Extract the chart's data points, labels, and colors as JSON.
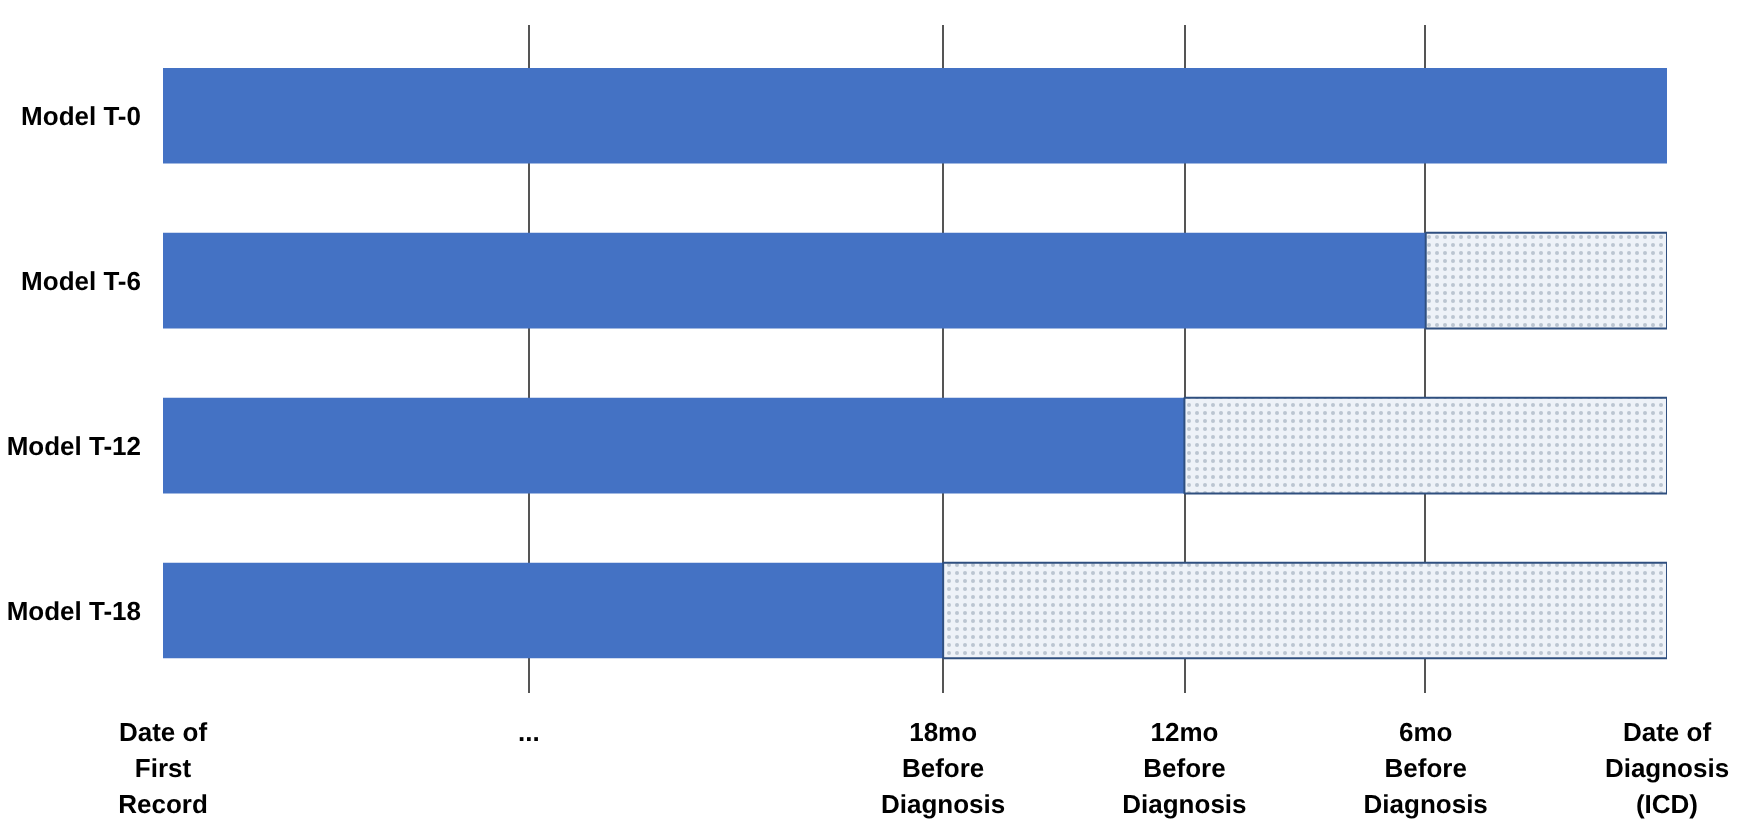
{
  "chart_data": {
    "type": "bar",
    "orientation": "horizontal",
    "categories": [
      "Model T-0",
      "Model T-6",
      "Model T-12",
      "Model T-18"
    ],
    "series": [
      {
        "color": "#4472c4",
        "base": [
          37.4,
          37.4,
          37.4,
          37.4
        ],
        "values": [
          -37.4,
          -31.4,
          -25.4,
          -19.4
        ]
      },
      {
        "color": "#eef2f8",
        "base": [
          null,
          6,
          12,
          18
        ],
        "values": [
          null,
          -6,
          -12,
          -18
        ]
      }
    ],
    "xlim": [
      37.4,
      0
    ],
    "xticks": [
      {
        "value": 37.4,
        "label": "Date of\nFirst\nRecord"
      },
      {
        "value": 28.3,
        "label": "..."
      },
      {
        "value": 18,
        "label": "18mo\nBefore\nDiagnosis"
      },
      {
        "value": 12,
        "label": "12mo\nBefore\nDiagnosis"
      },
      {
        "value": 6,
        "label": "6mo\nBefore\nDiagnosis"
      },
      {
        "value": 0,
        "label": "Date of\nDiagnosis\n(ICD)"
      }
    ],
    "grid": "x"
  }
}
